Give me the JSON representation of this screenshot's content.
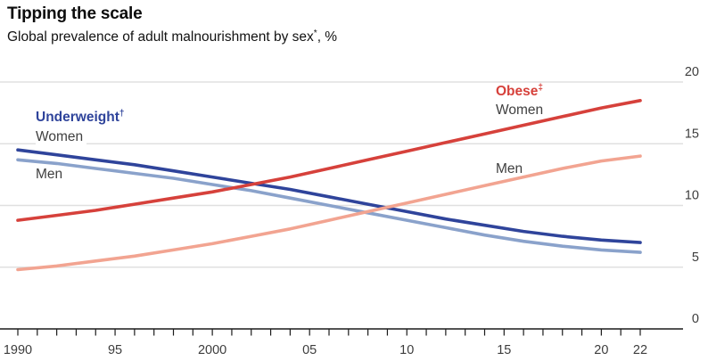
{
  "header": {
    "title": "Tipping the scale",
    "subtitle_text": "Global prevalence of adult malnourishment by sex",
    "subtitle_marker": "*",
    "subtitle_suffix": ", %"
  },
  "annotations": {
    "underweight_label": "Underweight",
    "underweight_marker": "†",
    "underweight_women": "Women",
    "underweight_men": "Men",
    "obese_label": "Obese",
    "obese_marker": "‡",
    "obese_women": "Women",
    "obese_men": "Men"
  },
  "colors": {
    "underweight_women_line": "#2f449b",
    "underweight_men_line": "#8aa2cb",
    "obese_women_line": "#d6413b",
    "obese_men_line": "#f2a491",
    "gridline": "#e0e0e0",
    "axis": "#1a1a1a",
    "axis_text": "#3d3d3d"
  },
  "chart_data": {
    "type": "line",
    "title": "Tipping the scale",
    "subtitle": "Global prevalence of adult malnourishment by sex*, %",
    "ylabel": "%",
    "xlabel": "",
    "ylim": [
      0,
      20
    ],
    "yticks": [
      0,
      5,
      10,
      15,
      20
    ],
    "grid": "horizontal",
    "legend_position": "direct-labels-on-chart",
    "x": [
      1990,
      1992,
      1994,
      1996,
      1998,
      2000,
      2002,
      2004,
      2006,
      2008,
      2010,
      2012,
      2014,
      2016,
      2018,
      2020,
      2022
    ],
    "series": [
      {
        "id": "underweight-women",
        "name": "Underweight Women",
        "color": "#2f449b",
        "values": [
          14.5,
          14.1,
          13.7,
          13.3,
          12.8,
          12.3,
          11.8,
          11.3,
          10.7,
          10.1,
          9.5,
          8.9,
          8.4,
          7.9,
          7.5,
          7.2,
          7.0
        ]
      },
      {
        "id": "underweight-men",
        "name": "Underweight Men",
        "color": "#8aa2cb",
        "values": [
          13.7,
          13.4,
          13.0,
          12.6,
          12.2,
          11.7,
          11.2,
          10.6,
          10.0,
          9.4,
          8.8,
          8.2,
          7.6,
          7.1,
          6.7,
          6.4,
          6.2
        ]
      },
      {
        "id": "obese-women",
        "name": "Obese Women",
        "color": "#d6413b",
        "values": [
          8.8,
          9.2,
          9.6,
          10.1,
          10.6,
          11.1,
          11.7,
          12.3,
          13.0,
          13.7,
          14.4,
          15.1,
          15.8,
          16.5,
          17.2,
          17.9,
          18.5
        ]
      },
      {
        "id": "obese-men",
        "name": "Obese Men",
        "color": "#f2a491",
        "values": [
          4.8,
          5.1,
          5.5,
          5.9,
          6.4,
          6.9,
          7.5,
          8.1,
          8.8,
          9.5,
          10.2,
          10.9,
          11.6,
          12.3,
          13.0,
          13.6,
          14.0
        ]
      }
    ],
    "x_axis": {
      "tick_start": 1990,
      "tick_end": 2022,
      "labels": [
        {
          "year": 1990,
          "label": "1990"
        },
        {
          "year": 1995,
          "label": "95"
        },
        {
          "year": 2000,
          "label": "2000"
        },
        {
          "year": 2005,
          "label": "05"
        },
        {
          "year": 2010,
          "label": "10"
        },
        {
          "year": 2015,
          "label": "15"
        },
        {
          "year": 2020,
          "label": "20"
        },
        {
          "year": 2022,
          "label": "22"
        }
      ]
    }
  }
}
